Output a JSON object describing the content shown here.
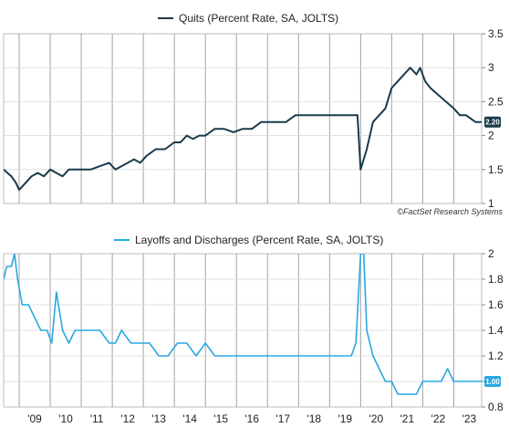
{
  "chart_data": [
    {
      "type": "line",
      "title": "",
      "xlabel": "",
      "ylabel": "",
      "ylim": [
        1,
        3.5
      ],
      "yticks": [
        "3.5",
        "3",
        "2.5",
        "2",
        "1.5",
        "1"
      ],
      "grid": true,
      "legend_position": "top-center",
      "credit": "©FactSet Research Systems",
      "last_value_label": "2.20",
      "color": "#1b3a4b",
      "series": [
        {
          "name": "Quits (Percent Rate, SA, JOLTS)",
          "x": [
            2008.5,
            2008.75,
            2008.9,
            2009.0,
            2009.2,
            2009.4,
            2009.6,
            2009.8,
            2010.0,
            2010.2,
            2010.4,
            2010.6,
            2010.8,
            2011.0,
            2011.3,
            2011.6,
            2011.9,
            2012.1,
            2012.3,
            2012.5,
            2012.7,
            2012.9,
            2013.1,
            2013.4,
            2013.7,
            2014.0,
            2014.2,
            2014.4,
            2014.6,
            2014.8,
            2015.0,
            2015.3,
            2015.6,
            2015.9,
            2016.2,
            2016.5,
            2016.8,
            2017.0,
            2017.3,
            2017.6,
            2017.9,
            2018.2,
            2018.5,
            2018.8,
            2019.1,
            2019.4,
            2019.7,
            2019.9,
            2020.0,
            2020.2,
            2020.4,
            2020.6,
            2020.8,
            2021.0,
            2021.2,
            2021.4,
            2021.6,
            2021.8,
            2021.92,
            2022.08,
            2022.25,
            2022.5,
            2022.75,
            2023.0,
            2023.2,
            2023.4,
            2023.7,
            2023.9
          ],
          "y": [
            1.5,
            1.4,
            1.3,
            1.2,
            1.3,
            1.4,
            1.45,
            1.4,
            1.5,
            1.45,
            1.4,
            1.5,
            1.5,
            1.5,
            1.5,
            1.55,
            1.6,
            1.5,
            1.55,
            1.6,
            1.65,
            1.6,
            1.7,
            1.8,
            1.8,
            1.9,
            1.9,
            2.0,
            1.95,
            2.0,
            2.0,
            2.1,
            2.1,
            2.05,
            2.1,
            2.1,
            2.2,
            2.2,
            2.2,
            2.2,
            2.3,
            2.3,
            2.3,
            2.3,
            2.3,
            2.3,
            2.3,
            2.3,
            1.5,
            1.8,
            2.2,
            2.3,
            2.4,
            2.7,
            2.8,
            2.9,
            3.0,
            2.9,
            3.0,
            2.8,
            2.7,
            2.6,
            2.5,
            2.4,
            2.3,
            2.3,
            2.2,
            2.2
          ]
        }
      ]
    },
    {
      "type": "line",
      "title": "",
      "xlabel": "",
      "ylabel": "",
      "ylim": [
        0.8,
        2.0
      ],
      "yticks": [
        "2",
        "1.8",
        "1.6",
        "1.4",
        "1.2",
        "1",
        "0.8"
      ],
      "xlim": [
        2008.5,
        2023.9
      ],
      "xticks": [
        "'09",
        "'10",
        "'11",
        "'12",
        "'13",
        "'14",
        "'15",
        "'16",
        "'17",
        "'18",
        "'19",
        "'20",
        "'21",
        "'22",
        "'23"
      ],
      "grid": true,
      "legend_position": "top-center",
      "last_value_label": "1.00",
      "color": "#29a8e0",
      "series": [
        {
          "name": "Layoffs and Discharges (Percent Rate, SA, JOLTS)",
          "x": [
            2008.5,
            2008.6,
            2008.75,
            2008.85,
            2008.95,
            2009.1,
            2009.3,
            2009.5,
            2009.7,
            2009.9,
            2010.05,
            2010.2,
            2010.4,
            2010.6,
            2010.8,
            2011.0,
            2011.3,
            2011.6,
            2011.9,
            2012.1,
            2012.3,
            2012.6,
            2012.9,
            2013.2,
            2013.5,
            2013.8,
            2014.1,
            2014.4,
            2014.7,
            2015.0,
            2015.3,
            2015.6,
            2015.9,
            2016.2,
            2016.5,
            2016.8,
            2017.1,
            2017.4,
            2017.7,
            2018.0,
            2018.3,
            2018.6,
            2018.9,
            2019.2,
            2019.5,
            2019.7,
            2019.85,
            2020.0,
            2020.1,
            2020.2,
            2020.4,
            2020.6,
            2020.8,
            2021.0,
            2021.2,
            2021.4,
            2021.6,
            2021.8,
            2022.0,
            2022.2,
            2022.4,
            2022.6,
            2022.8,
            2023.0,
            2023.2,
            2023.4,
            2023.6,
            2023.8,
            2023.9
          ],
          "y": [
            1.8,
            1.9,
            1.9,
            2.0,
            1.8,
            1.6,
            1.6,
            1.5,
            1.4,
            1.4,
            1.3,
            1.7,
            1.4,
            1.3,
            1.4,
            1.4,
            1.4,
            1.4,
            1.3,
            1.3,
            1.4,
            1.3,
            1.3,
            1.3,
            1.2,
            1.2,
            1.3,
            1.3,
            1.2,
            1.3,
            1.2,
            1.2,
            1.2,
            1.2,
            1.2,
            1.2,
            1.2,
            1.2,
            1.2,
            1.2,
            1.2,
            1.2,
            1.2,
            1.2,
            1.2,
            1.2,
            1.3,
            2.0,
            2.0,
            1.4,
            1.2,
            1.1,
            1.0,
            1.0,
            0.9,
            0.9,
            0.9,
            0.9,
            1.0,
            1.0,
            1.0,
            1.0,
            1.1,
            1.0,
            1.0,
            1.0,
            1.0,
            1.0,
            1.0
          ]
        }
      ]
    }
  ]
}
